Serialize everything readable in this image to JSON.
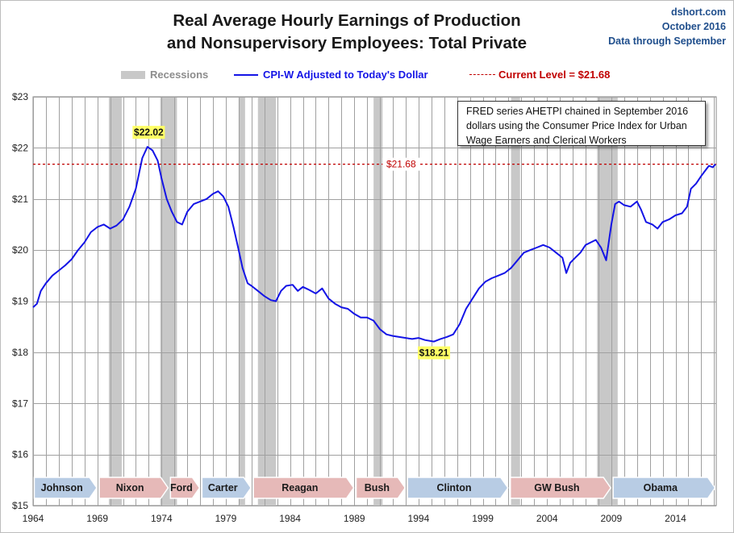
{
  "header": {
    "title_line1": "Real Average Hourly Earnings of Production",
    "title_line2": "and Nonsupervisory Employees: Total Private",
    "source": "dshort.com",
    "date": "October 2016",
    "note": "Data through September"
  },
  "legend": {
    "recessions": "Recessions",
    "series": "CPI-W Adjusted to Today's Dollar",
    "current": "Current Level = $21.68"
  },
  "info_box": {
    "line1": "FRED series AHETPI chained in September 2016",
    "line2": "dollars using the Consumer Price Index for Urban",
    "line3": "Wage Earners and Clerical Workers"
  },
  "colors": {
    "series": "#1414e6",
    "current_line": "#c00000",
    "recession": "#c8c8c8",
    "grid": "#a0a0a0",
    "callout_bg": "#ffff66",
    "dem_band": "#b8cce4",
    "rep_band": "#e6b9b8"
  },
  "chart_data": {
    "type": "line",
    "ylabel": "",
    "xlabel": "",
    "ylim": [
      15,
      23
    ],
    "xlim": [
      1964.0,
      2017.17
    ],
    "y_ticks": [
      "$15",
      "$16",
      "$17",
      "$18",
      "$19",
      "$20",
      "$21",
      "$22",
      "$23"
    ],
    "y_tick_values": [
      15,
      16,
      17,
      18,
      19,
      20,
      21,
      22,
      23
    ],
    "x_ticks": [
      "1964",
      "1969",
      "1974",
      "1979",
      "1984",
      "1989",
      "1994",
      "1999",
      "2004",
      "2009",
      "2014"
    ],
    "x_tick_values": [
      1964,
      1969,
      1974,
      1979,
      1984,
      1989,
      1994,
      1999,
      2004,
      2009,
      2014
    ],
    "grid": "vertical-and-horizontal",
    "legend_position": "top",
    "current_level": {
      "value": 21.68,
      "label": "$21.68"
    },
    "annotations": [
      {
        "label": "$22.02",
        "x": 1973.0,
        "y": 22.02
      },
      {
        "label": "$18.21",
        "x": 1995.2,
        "y": 18.21
      }
    ],
    "recessions": [
      [
        1969.9,
        1970.9
      ],
      [
        1973.9,
        1975.2
      ],
      [
        1980.0,
        1980.5
      ],
      [
        1981.5,
        1982.9
      ],
      [
        1990.5,
        1991.2
      ],
      [
        2001.2,
        2001.9
      ],
      [
        2007.9,
        2009.5
      ]
    ],
    "presidents": [
      {
        "name": "Johnson",
        "start": 1964.0,
        "end": 1969.05,
        "party": "dem"
      },
      {
        "name": "Nixon",
        "start": 1969.05,
        "end": 1974.6,
        "party": "rep"
      },
      {
        "name": "Ford",
        "start": 1974.6,
        "end": 1977.05,
        "party": "rep"
      },
      {
        "name": "Carter",
        "start": 1977.05,
        "end": 1981.05,
        "party": "dem"
      },
      {
        "name": "Reagan",
        "start": 1981.05,
        "end": 1989.05,
        "party": "rep"
      },
      {
        "name": "Bush",
        "start": 1989.05,
        "end": 1993.05,
        "party": "rep"
      },
      {
        "name": "Clinton",
        "start": 1993.05,
        "end": 2001.05,
        "party": "dem"
      },
      {
        "name": "GW Bush",
        "start": 2001.05,
        "end": 2009.05,
        "party": "rep"
      },
      {
        "name": "Obama",
        "start": 2009.05,
        "end": 2017.17,
        "party": "dem"
      }
    ],
    "series": [
      {
        "name": "CPI-W Adjusted to Today's Dollar",
        "points": [
          [
            1964.0,
            18.88
          ],
          [
            1964.3,
            18.95
          ],
          [
            1964.6,
            19.2
          ],
          [
            1965.0,
            19.35
          ],
          [
            1965.5,
            19.5
          ],
          [
            1966.0,
            19.6
          ],
          [
            1966.5,
            19.7
          ],
          [
            1967.0,
            19.82
          ],
          [
            1967.5,
            20.0
          ],
          [
            1968.0,
            20.15
          ],
          [
            1968.5,
            20.35
          ],
          [
            1969.0,
            20.45
          ],
          [
            1969.5,
            20.5
          ],
          [
            1970.0,
            20.42
          ],
          [
            1970.5,
            20.48
          ],
          [
            1971.0,
            20.6
          ],
          [
            1971.5,
            20.85
          ],
          [
            1972.0,
            21.2
          ],
          [
            1972.5,
            21.8
          ],
          [
            1972.9,
            22.02
          ],
          [
            1973.3,
            21.95
          ],
          [
            1973.7,
            21.75
          ],
          [
            1974.0,
            21.4
          ],
          [
            1974.4,
            21.0
          ],
          [
            1974.8,
            20.75
          ],
          [
            1975.2,
            20.55
          ],
          [
            1975.6,
            20.5
          ],
          [
            1976.0,
            20.75
          ],
          [
            1976.5,
            20.9
          ],
          [
            1977.0,
            20.95
          ],
          [
            1977.5,
            21.0
          ],
          [
            1978.0,
            21.1
          ],
          [
            1978.4,
            21.15
          ],
          [
            1978.8,
            21.05
          ],
          [
            1979.2,
            20.85
          ],
          [
            1979.6,
            20.45
          ],
          [
            1980.0,
            20.0
          ],
          [
            1980.3,
            19.65
          ],
          [
            1980.7,
            19.35
          ],
          [
            1981.0,
            19.3
          ],
          [
            1981.5,
            19.2
          ],
          [
            1982.0,
            19.1
          ],
          [
            1982.5,
            19.02
          ],
          [
            1982.9,
            19.0
          ],
          [
            1983.3,
            19.2
          ],
          [
            1983.7,
            19.3
          ],
          [
            1984.2,
            19.32
          ],
          [
            1984.6,
            19.2
          ],
          [
            1985.0,
            19.28
          ],
          [
            1985.5,
            19.22
          ],
          [
            1986.0,
            19.15
          ],
          [
            1986.5,
            19.25
          ],
          [
            1987.0,
            19.05
          ],
          [
            1987.5,
            18.95
          ],
          [
            1988.0,
            18.88
          ],
          [
            1988.5,
            18.85
          ],
          [
            1989.0,
            18.75
          ],
          [
            1989.5,
            18.68
          ],
          [
            1990.0,
            18.68
          ],
          [
            1990.5,
            18.62
          ],
          [
            1991.0,
            18.45
          ],
          [
            1991.5,
            18.35
          ],
          [
            1992.0,
            18.32
          ],
          [
            1992.5,
            18.3
          ],
          [
            1993.0,
            18.28
          ],
          [
            1993.5,
            18.26
          ],
          [
            1994.0,
            18.28
          ],
          [
            1994.5,
            18.24
          ],
          [
            1995.2,
            18.21
          ],
          [
            1995.7,
            18.26
          ],
          [
            1996.2,
            18.3
          ],
          [
            1996.7,
            18.35
          ],
          [
            1997.2,
            18.55
          ],
          [
            1997.7,
            18.85
          ],
          [
            1998.2,
            19.05
          ],
          [
            1998.7,
            19.25
          ],
          [
            1999.2,
            19.38
          ],
          [
            1999.7,
            19.45
          ],
          [
            2000.2,
            19.5
          ],
          [
            2000.7,
            19.55
          ],
          [
            2001.2,
            19.65
          ],
          [
            2001.7,
            19.8
          ],
          [
            2002.2,
            19.95
          ],
          [
            2002.7,
            20.0
          ],
          [
            2003.2,
            20.05
          ],
          [
            2003.7,
            20.1
          ],
          [
            2004.2,
            20.05
          ],
          [
            2004.7,
            19.95
          ],
          [
            2005.2,
            19.85
          ],
          [
            2005.5,
            19.55
          ],
          [
            2005.8,
            19.75
          ],
          [
            2006.2,
            19.85
          ],
          [
            2006.6,
            19.95
          ],
          [
            2007.0,
            20.1
          ],
          [
            2007.4,
            20.15
          ],
          [
            2007.8,
            20.2
          ],
          [
            2008.2,
            20.05
          ],
          [
            2008.6,
            19.8
          ],
          [
            2009.0,
            20.5
          ],
          [
            2009.3,
            20.9
          ],
          [
            2009.6,
            20.95
          ],
          [
            2010.0,
            20.88
          ],
          [
            2010.5,
            20.85
          ],
          [
            2011.0,
            20.95
          ],
          [
            2011.3,
            20.8
          ],
          [
            2011.7,
            20.55
          ],
          [
            2012.2,
            20.5
          ],
          [
            2012.6,
            20.42
          ],
          [
            2013.0,
            20.55
          ],
          [
            2013.5,
            20.6
          ],
          [
            2014.0,
            20.68
          ],
          [
            2014.5,
            20.72
          ],
          [
            2014.9,
            20.85
          ],
          [
            2015.2,
            21.2
          ],
          [
            2015.6,
            21.3
          ],
          [
            2016.0,
            21.45
          ],
          [
            2016.3,
            21.55
          ],
          [
            2016.6,
            21.65
          ],
          [
            2016.9,
            21.62
          ],
          [
            2017.1,
            21.68
          ]
        ]
      }
    ]
  }
}
